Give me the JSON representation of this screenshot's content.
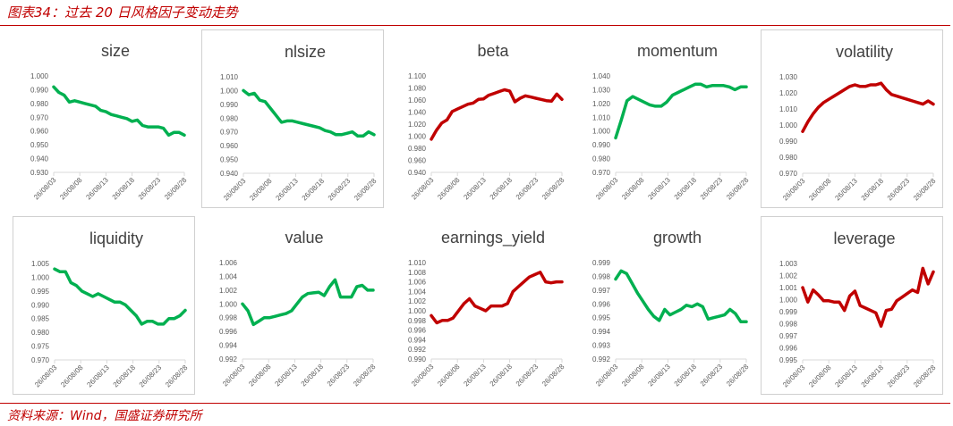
{
  "figure": {
    "title": "图表34：过去 20 日风格因子变动走势",
    "source": "资料来源：Wind，国盛证券研究所"
  },
  "colors": {
    "green": "#00b050",
    "red": "#c00000",
    "axis": "#d9d9d9",
    "text": "#595959"
  },
  "chart_data": [
    {
      "type": "line",
      "title": "size",
      "color": "green",
      "y_ticks": [
        "0.930",
        "0.940",
        "0.950",
        "0.960",
        "0.970",
        "0.980",
        "0.990",
        "1.000"
      ],
      "ylim": [
        0.93,
        1.0
      ],
      "x_ticks": [
        "26/08/03",
        "26/08/08",
        "26/08/13",
        "26/08/18",
        "26/08/23",
        "26/08/28"
      ],
      "values": [
        0.992,
        0.988,
        0.986,
        0.981,
        0.982,
        0.981,
        0.98,
        0.979,
        0.978,
        0.975,
        0.974,
        0.972,
        0.971,
        0.97,
        0.969,
        0.967,
        0.968,
        0.964,
        0.963,
        0.963,
        0.963,
        0.962,
        0.957,
        0.959,
        0.959,
        0.957
      ]
    },
    {
      "type": "line",
      "title": "nlsize",
      "color": "green",
      "y_ticks": [
        "0.940",
        "0.950",
        "0.960",
        "0.970",
        "0.980",
        "0.990",
        "1.000",
        "1.010"
      ],
      "ylim": [
        0.94,
        1.01
      ],
      "x_ticks": [
        "26/08/03",
        "26/08/08",
        "26/08/13",
        "26/08/18",
        "26/08/23",
        "26/08/28"
      ],
      "values": [
        1.0,
        0.997,
        0.998,
        0.993,
        0.992,
        0.987,
        0.982,
        0.977,
        0.978,
        0.978,
        0.977,
        0.976,
        0.975,
        0.974,
        0.973,
        0.971,
        0.97,
        0.968,
        0.968,
        0.969,
        0.97,
        0.967,
        0.967,
        0.97,
        0.968
      ]
    },
    {
      "type": "line",
      "title": "beta",
      "color": "red",
      "y_ticks": [
        "0.940",
        "0.960",
        "0.980",
        "1.000",
        "1.020",
        "1.040",
        "1.060",
        "1.080",
        "1.100"
      ],
      "ylim": [
        0.94,
        1.1
      ],
      "x_ticks": [
        "26/08/03",
        "26/08/08",
        "26/08/13",
        "26/08/18",
        "26/08/23",
        "26/08/28"
      ],
      "values": [
        0.995,
        1.01,
        1.022,
        1.027,
        1.041,
        1.045,
        1.049,
        1.053,
        1.055,
        1.061,
        1.062,
        1.068,
        1.071,
        1.074,
        1.077,
        1.075,
        1.057,
        1.063,
        1.067,
        1.065,
        1.063,
        1.061,
        1.059,
        1.058,
        1.07,
        1.061
      ]
    },
    {
      "type": "line",
      "title": "momentum",
      "color": "green",
      "y_ticks": [
        "0.970",
        "0.980",
        "0.990",
        "1.000",
        "1.010",
        "1.020",
        "1.030",
        "1.040"
      ],
      "ylim": [
        0.97,
        1.04
      ],
      "x_ticks": [
        "26/08/03",
        "26/08/08",
        "26/08/13",
        "26/08/18",
        "26/08/23",
        "26/08/28"
      ],
      "values": [
        0.995,
        1.008,
        1.022,
        1.025,
        1.023,
        1.021,
        1.019,
        1.018,
        1.018,
        1.021,
        1.026,
        1.028,
        1.03,
        1.032,
        1.034,
        1.034,
        1.032,
        1.033,
        1.033,
        1.033,
        1.032,
        1.03,
        1.032,
        1.032
      ]
    },
    {
      "type": "line",
      "title": "volatility",
      "color": "red",
      "y_ticks": [
        "0.970",
        "0.980",
        "0.990",
        "1.000",
        "1.010",
        "1.020",
        "1.030"
      ],
      "ylim": [
        0.97,
        1.03
      ],
      "x_ticks": [
        "26/08/03",
        "26/08/08",
        "26/08/13",
        "26/08/18",
        "26/08/23",
        "26/08/28"
      ],
      "values": [
        0.996,
        1.002,
        1.007,
        1.011,
        1.014,
        1.016,
        1.018,
        1.02,
        1.022,
        1.024,
        1.025,
        1.024,
        1.024,
        1.025,
        1.025,
        1.026,
        1.022,
        1.019,
        1.018,
        1.017,
        1.016,
        1.015,
        1.014,
        1.013,
        1.015,
        1.013
      ]
    },
    {
      "type": "line",
      "title": "liquidity",
      "color": "green",
      "y_ticks": [
        "0.970",
        "0.975",
        "0.980",
        "0.985",
        "0.990",
        "0.995",
        "1.000",
        "1.005"
      ],
      "ylim": [
        0.97,
        1.005
      ],
      "x_ticks": [
        "26/08/03",
        "26/08/08",
        "26/08/13",
        "26/08/18",
        "26/08/23",
        "26/08/28"
      ],
      "values": [
        1.003,
        1.002,
        1.002,
        0.998,
        0.997,
        0.995,
        0.994,
        0.993,
        0.994,
        0.993,
        0.992,
        0.991,
        0.991,
        0.99,
        0.988,
        0.986,
        0.983,
        0.984,
        0.984,
        0.983,
        0.983,
        0.985,
        0.985,
        0.986,
        0.988
      ]
    },
    {
      "type": "line",
      "title": "value",
      "color": "green",
      "y_ticks": [
        "0.992",
        "0.994",
        "0.996",
        "0.998",
        "1.000",
        "1.002",
        "1.004",
        "1.006"
      ],
      "ylim": [
        0.992,
        1.006
      ],
      "x_ticks": [
        "26/08/03",
        "26/08/08",
        "26/08/13",
        "26/08/18",
        "26/08/23",
        "26/08/28"
      ],
      "values": [
        1.0,
        0.999,
        0.997,
        0.9975,
        0.998,
        0.998,
        0.9982,
        0.9984,
        0.9986,
        0.999,
        1.0,
        1.001,
        1.0015,
        1.0016,
        1.0017,
        1.0012,
        1.0025,
        1.0035,
        1.001,
        1.001,
        1.001,
        1.0025,
        1.0027,
        1.002,
        1.002
      ]
    },
    {
      "type": "line",
      "title": "earnings_yield",
      "color": "red",
      "y_ticks": [
        "0.990",
        "0.992",
        "0.994",
        "0.996",
        "0.998",
        "1.000",
        "1.002",
        "1.004",
        "1.006",
        "1.008",
        "1.010"
      ],
      "ylim": [
        0.99,
        1.01
      ],
      "x_ticks": [
        "26/08/03",
        "26/08/08",
        "26/08/13",
        "26/08/18",
        "26/08/23",
        "26/08/28"
      ],
      "values": [
        0.999,
        0.9975,
        0.998,
        0.998,
        0.9985,
        1.0,
        1.0015,
        1.0025,
        1.001,
        1.0005,
        1.0,
        1.001,
        1.001,
        1.001,
        1.0015,
        1.004,
        1.005,
        1.006,
        1.007,
        1.0075,
        1.008,
        1.006,
        1.0058,
        1.006,
        1.006
      ]
    },
    {
      "type": "line",
      "title": "growth",
      "color": "green",
      "y_ticks": [
        "0.992",
        "0.993",
        "0.994",
        "0.995",
        "0.996",
        "0.997",
        "0.998",
        "0.999"
      ],
      "ylim": [
        0.992,
        0.999
      ],
      "x_ticks": [
        "26/08/03",
        "26/08/08",
        "26/08/13",
        "26/08/18",
        "26/08/23",
        "26/08/28"
      ],
      "values": [
        0.9978,
        0.9984,
        0.9982,
        0.9975,
        0.9968,
        0.9962,
        0.9956,
        0.9951,
        0.9948,
        0.9956,
        0.9952,
        0.9954,
        0.9956,
        0.9959,
        0.9958,
        0.996,
        0.9958,
        0.9949,
        0.995,
        0.9951,
        0.9952,
        0.9956,
        0.9953,
        0.9947,
        0.9947
      ]
    },
    {
      "type": "line",
      "title": "leverage",
      "color": "red",
      "y_ticks": [
        "0.995",
        "0.996",
        "0.997",
        "0.998",
        "0.999",
        "1.000",
        "1.001",
        "1.002",
        "1.003"
      ],
      "ylim": [
        0.995,
        1.003
      ],
      "x_ticks": [
        "26/08/03",
        "26/08/08",
        "26/08/13",
        "26/08/18",
        "26/08/23",
        "26/08/28"
      ],
      "values": [
        1.001,
        0.9998,
        1.0008,
        1.0004,
        0.9999,
        0.9999,
        0.9998,
        0.9998,
        0.9991,
        1.0003,
        1.0007,
        0.9995,
        0.9993,
        0.9991,
        0.9989,
        0.9978,
        0.9991,
        0.9992,
        0.9999,
        1.0002,
        1.0005,
        1.0008,
        1.0006,
        1.0026,
        1.0013,
        1.0023
      ]
    }
  ]
}
